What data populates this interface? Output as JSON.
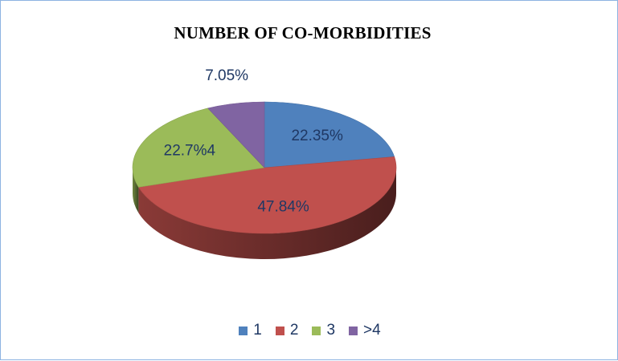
{
  "chart_data": {
    "type": "pie",
    "title": "NUMBER OF CO-MORBIDITIES",
    "categories": [
      "1",
      "2",
      "3",
      ">4"
    ],
    "values": [
      22.35,
      47.84,
      22.74,
      7.05
    ],
    "data_labels": [
      "22.35%",
      "47.84%",
      "22.7%4",
      "7.05%"
    ],
    "colors": [
      "#4f81bd",
      "#c0504d",
      "#9bbb59",
      "#8064a2"
    ],
    "style": "3d",
    "legend_position": "bottom"
  }
}
